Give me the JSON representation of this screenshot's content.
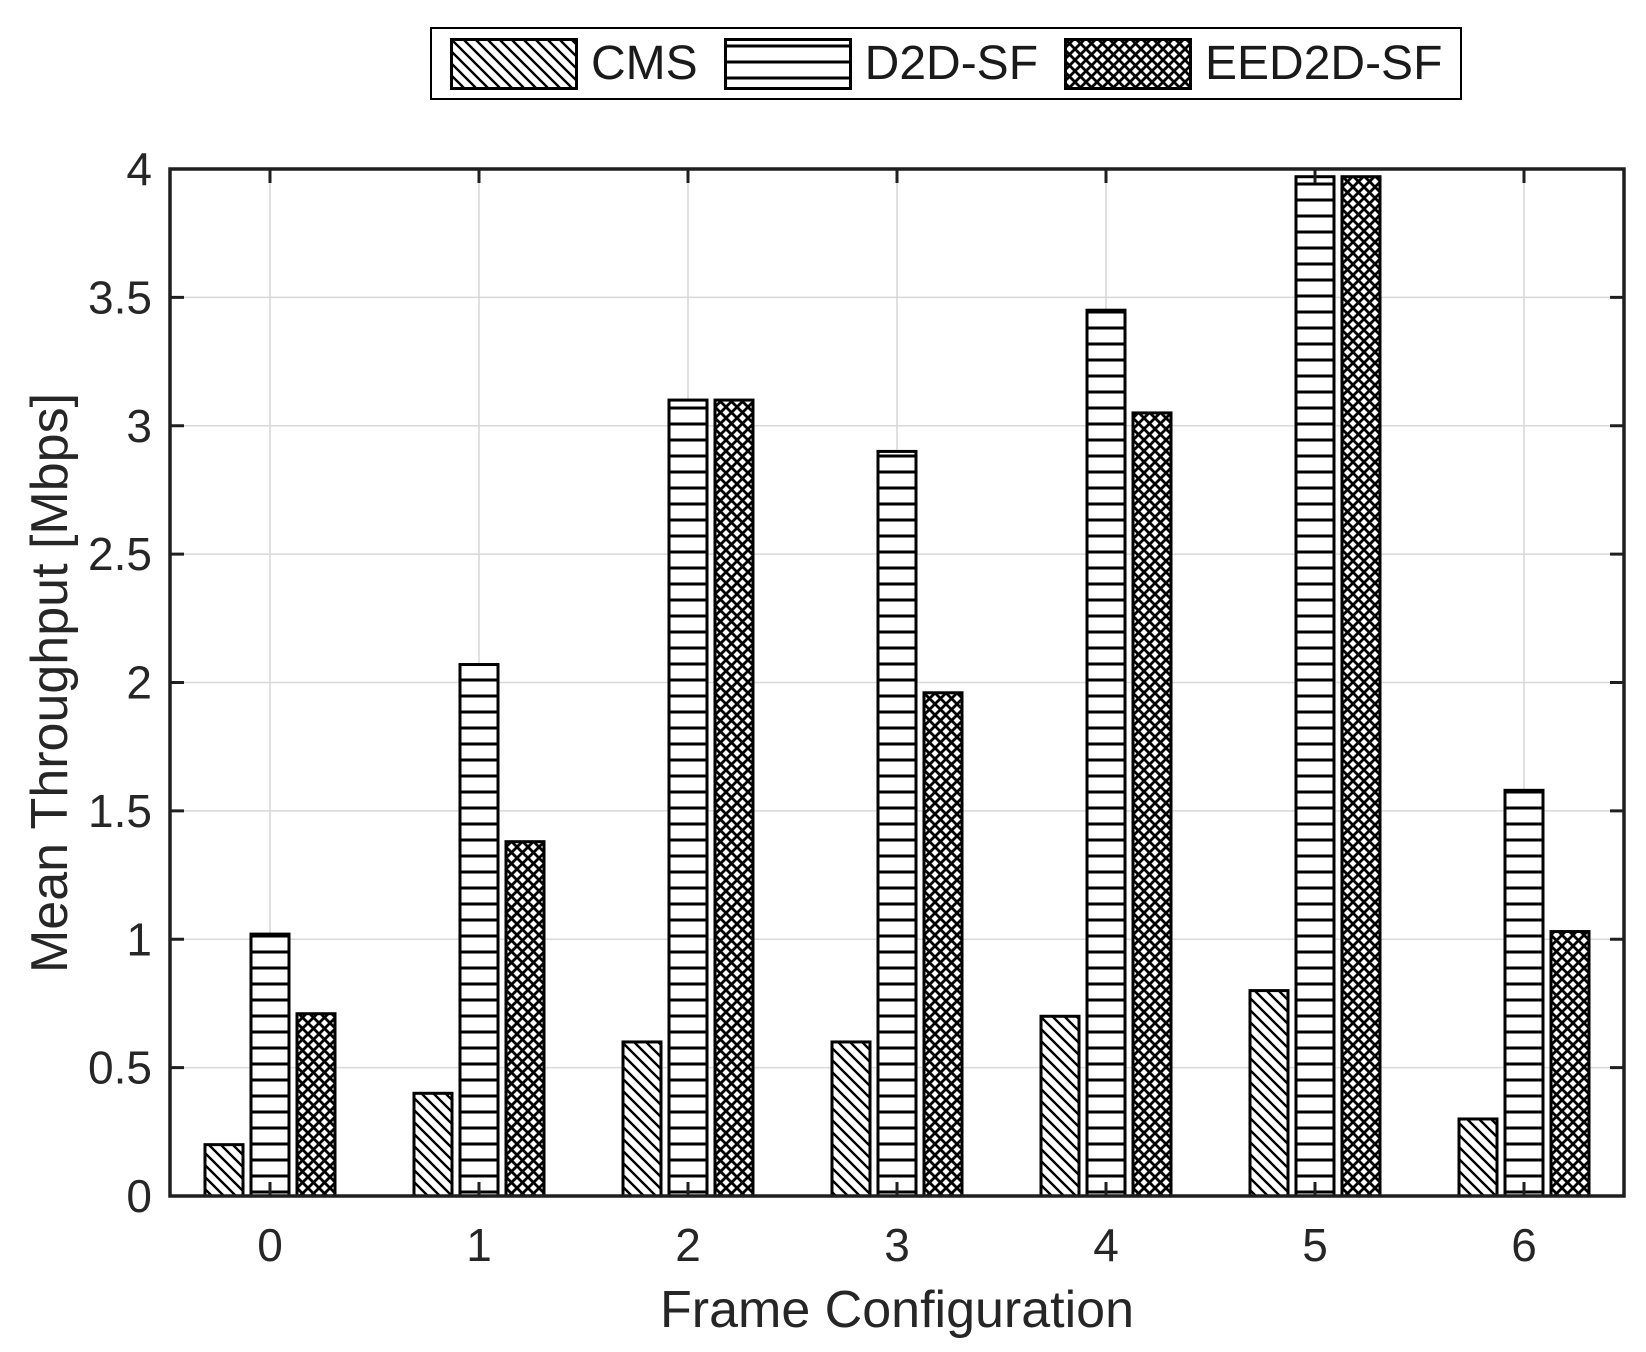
{
  "chart_data": {
    "type": "bar",
    "title": "",
    "xlabel": "Frame Configuration",
    "ylabel": "Mean Throughput [Mbps]",
    "categories": [
      "0",
      "1",
      "2",
      "3",
      "4",
      "5",
      "6"
    ],
    "series": [
      {
        "name": "CMS",
        "pattern": "diagonal-hatch",
        "values": [
          0.2,
          0.4,
          0.6,
          0.6,
          0.7,
          0.8,
          0.3
        ]
      },
      {
        "name": "D2D-SF",
        "pattern": "horizontal-lines",
        "values": [
          1.02,
          2.07,
          3.1,
          2.9,
          3.45,
          3.97,
          1.58
        ]
      },
      {
        "name": "EED2D-SF",
        "pattern": "crosshatch",
        "values": [
          0.71,
          1.38,
          3.1,
          1.96,
          3.05,
          3.97,
          1.03
        ]
      }
    ],
    "ylim": [
      0,
      4
    ],
    "yticks": [
      0,
      0.5,
      1,
      1.5,
      2,
      2.5,
      3,
      3.5,
      4
    ],
    "ytick_labels": [
      "0",
      "0.5",
      "1",
      "1.5",
      "2",
      "2.5",
      "3",
      "3.5",
      "4"
    ],
    "grid": "on",
    "legend_position": "top-center"
  },
  "colors": {
    "ink": "#000000",
    "frame": "#1f1f1f",
    "grid": "#d8d8d8",
    "text": "#262626",
    "background": "#ffffff"
  }
}
